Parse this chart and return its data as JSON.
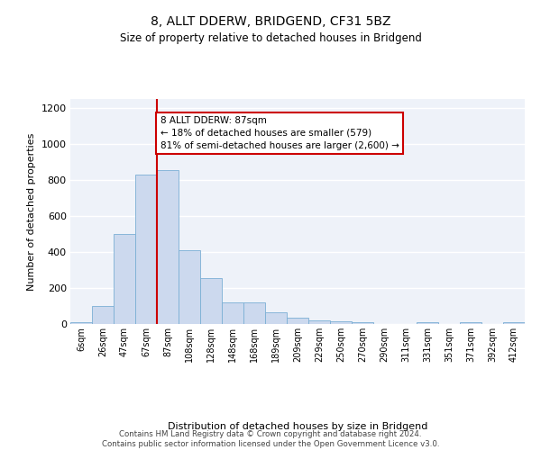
{
  "title_line1": "8, ALLT DDERW, BRIDGEND, CF31 5BZ",
  "title_line2": "Size of property relative to detached houses in Bridgend",
  "xlabel": "Distribution of detached houses by size in Bridgend",
  "ylabel": "Number of detached properties",
  "bin_labels": [
    "6sqm",
    "26sqm",
    "47sqm",
    "67sqm",
    "87sqm",
    "108sqm",
    "128sqm",
    "148sqm",
    "168sqm",
    "189sqm",
    "209sqm",
    "229sqm",
    "250sqm",
    "270sqm",
    "290sqm",
    "311sqm",
    "331sqm",
    "351sqm",
    "371sqm",
    "392sqm",
    "412sqm"
  ],
  "bar_values": [
    10,
    100,
    500,
    830,
    855,
    410,
    255,
    120,
    120,
    65,
    35,
    20,
    15,
    10,
    0,
    0,
    10,
    0,
    10,
    0,
    10
  ],
  "bar_color": "#ccd9ee",
  "bar_edge_color": "#7bafd4",
  "annotation_text": "8 ALLT DDERW: 87sqm\n← 18% of detached houses are smaller (579)\n81% of semi-detached houses are larger (2,600) →",
  "annotation_box_color": "#ffffff",
  "annotation_box_edge_color": "#cc0000",
  "vline_color": "#cc0000",
  "ylim": [
    0,
    1250
  ],
  "yticks": [
    0,
    200,
    400,
    600,
    800,
    1000,
    1200
  ],
  "footer_line1": "Contains HM Land Registry data © Crown copyright and database right 2024.",
  "footer_line2": "Contains public sector information licensed under the Open Government Licence v3.0.",
  "bg_color": "#eef2f9",
  "grid_color": "#ffffff"
}
